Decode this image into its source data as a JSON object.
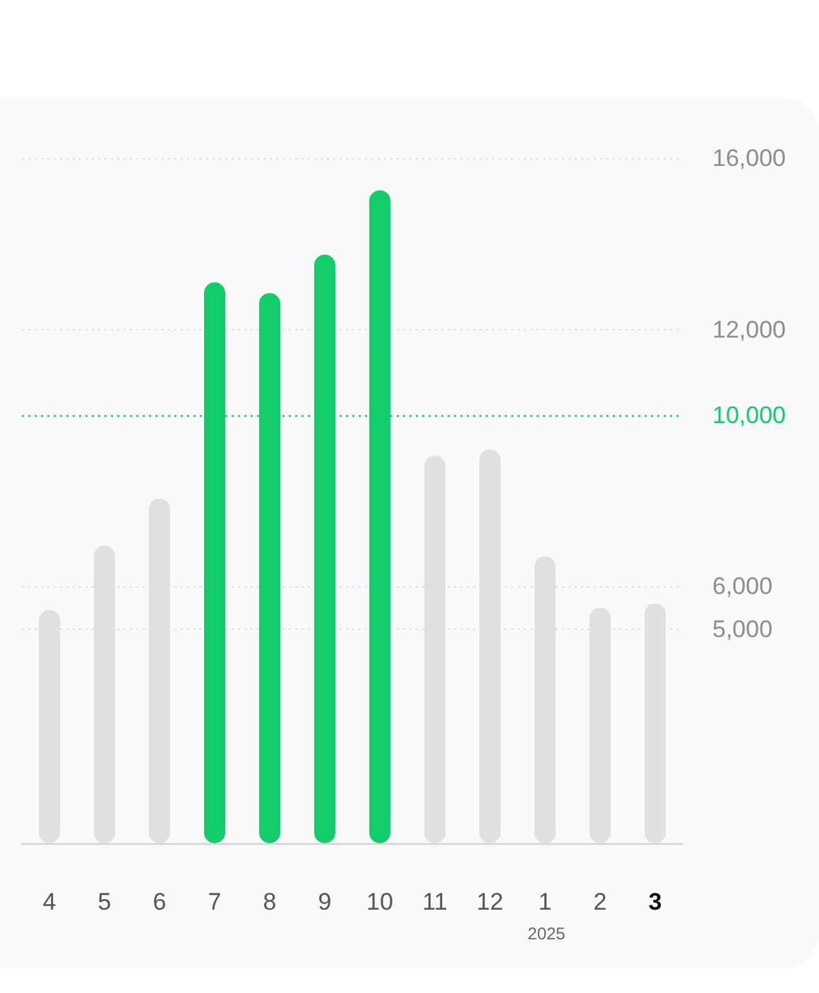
{
  "chart_data": {
    "type": "bar",
    "categories": [
      "4",
      "5",
      "6",
      "7",
      "8",
      "9",
      "10",
      "11",
      "12",
      "1",
      "2",
      "3"
    ],
    "values": [
      5450,
      6950,
      8050,
      13100,
      12850,
      13750,
      15250,
      9050,
      9200,
      6700,
      5500,
      5600
    ],
    "colors": [
      "#e0e0e0",
      "#e0e0e0",
      "#e0e0e0",
      "#12cd6a",
      "#12cd6a",
      "#12cd6a",
      "#12cd6a",
      "#e0e0e0",
      "#e0e0e0",
      "#e0e0e0",
      "#e0e0e0",
      "#e0e0e0"
    ],
    "ylim": [
      0,
      16000
    ],
    "yticks": [
      {
        "value": 5000,
        "label": "5,000"
      },
      {
        "value": 6000,
        "label": "6,000"
      },
      {
        "value": 12000,
        "label": "12,000"
      },
      {
        "value": 16000,
        "label": "16,000"
      }
    ],
    "grid": "y",
    "ref_lines": [
      {
        "axis": "y",
        "value": 10000,
        "label": "10,000",
        "color": "#12cd6a",
        "line_style": "dotted"
      }
    ],
    "annotations": [
      "2025"
    ]
  }
}
